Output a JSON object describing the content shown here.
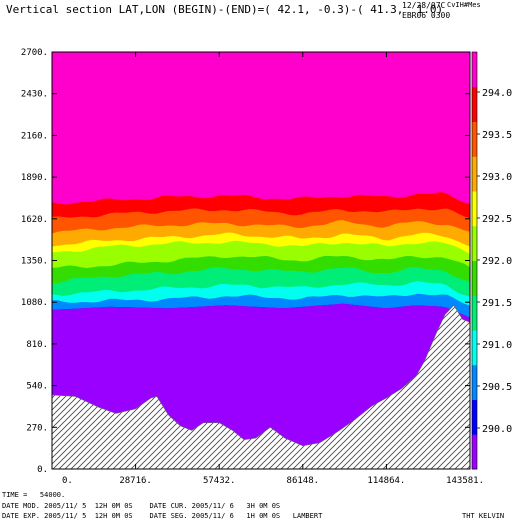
{
  "header": {
    "title": "Vertical section LAT,LON (BEGIN)-(END)=( 42.1, -0.3)-( 41.3,  1.0)",
    "date": "12/28/07C",
    "user": "CvIH#Mes",
    "run": "EBR06 0300"
  },
  "footer": {
    "time": "TIME =   54000.",
    "line1": "DATE MOD. 2005/11/ 5  12H 0M 0S    DATE CUR. 2005/11/ 6   3H 0M 0S",
    "line2": "DATE EXP. 2005/11/ 5  12H 0M 0S    DATE SEG. 2005/11/ 6   1H 0M 0S   LAMBERT",
    "field": "THT KELVIN"
  },
  "chart_data": {
    "type": "area",
    "title": "Vertical section LAT,LON (BEGIN)-(END)=( 42.1, -0.3)-( 41.3,  1.0)",
    "xlabel": "",
    "ylabel": "",
    "xlim": [
      0,
      143581
    ],
    "ylim": [
      0,
      2700
    ],
    "x_ticks": [
      0,
      28716,
      57432,
      86148,
      114864,
      143581
    ],
    "x_tick_labels": [
      "0.",
      "28716.",
      "57432.",
      "86148.",
      "114864.",
      "143581."
    ],
    "y_ticks": [
      0,
      270,
      540,
      810,
      1080,
      1350,
      1620,
      1890,
      2160,
      2430,
      2700
    ],
    "y_tick_labels": [
      "0.",
      "270.",
      "540.",
      "810.",
      "1080.",
      "1350.",
      "1620.",
      "1890.",
      "2160.",
      "2430.",
      "2700."
    ],
    "colorbar": {
      "label_values": [
        "290.0",
        "290.5",
        "291.0",
        "291.5",
        "292.0",
        "292.5",
        "293.0",
        "293.5",
        "294.0"
      ],
      "colors": [
        "#9a00ff",
        "#0000ff",
        "#0088ff",
        "#00ffee",
        "#00ee77",
        "#33dd00",
        "#99ff00",
        "#ffff00",
        "#ffaa00",
        "#ff5500",
        "#ff0000",
        "#ff00cc"
      ]
    },
    "terrain": {
      "x": [
        0,
        8000,
        16000,
        22000,
        28716,
        34000,
        36000,
        40000,
        44000,
        48000,
        52000,
        57432,
        62000,
        66000,
        70000,
        75000,
        80000,
        86148,
        92000,
        98000,
        104000,
        110000,
        114864,
        120000,
        125000,
        128000,
        132000,
        135000,
        138000,
        141000,
        143581
      ],
      "y": [
        480,
        470,
        400,
        360,
        390,
        460,
        470,
        350,
        280,
        250,
        300,
        300,
        250,
        190,
        200,
        270,
        200,
        150,
        170,
        240,
        320,
        410,
        460,
        520,
        600,
        700,
        880,
        1000,
        1060,
        970,
        950
      ]
    },
    "isolines": [
      {
        "name": "290.5",
        "x": [
          0,
          20000,
          40000,
          60000,
          80000,
          86148,
          100000,
          114864,
          125000,
          135000,
          143581
        ],
        "y": [
          1030,
          1050,
          1040,
          1060,
          1040,
          1050,
          1070,
          1040,
          1060,
          1050,
          980
        ]
      },
      {
        "name": "291.0",
        "x": [
          0,
          20000,
          40000,
          60000,
          80000,
          86148,
          100000,
          114864,
          125000,
          135000,
          143581
        ],
        "y": [
          1080,
          1090,
          1100,
          1120,
          1110,
          1100,
          1130,
          1110,
          1140,
          1120,
          1060
        ]
      },
      {
        "name": "291.2",
        "x": [
          0,
          20000,
          40000,
          60000,
          80000,
          86148,
          100000,
          114864,
          125000,
          135000,
          143581
        ],
        "y": [
          1130,
          1150,
          1170,
          1190,
          1180,
          1170,
          1200,
          1190,
          1210,
          1190,
          1120
        ]
      },
      {
        "name": "291.5",
        "x": [
          0,
          20000,
          40000,
          60000,
          80000,
          86148,
          100000,
          114864,
          125000,
          135000,
          143581
        ],
        "y": [
          1210,
          1250,
          1270,
          1300,
          1280,
          1280,
          1300,
          1270,
          1300,
          1290,
          1200
        ]
      },
      {
        "name": "291.8",
        "x": [
          0,
          20000,
          40000,
          60000,
          80000,
          86148,
          100000,
          114864,
          125000,
          135000,
          143581
        ],
        "y": [
          1300,
          1320,
          1350,
          1380,
          1360,
          1350,
          1380,
          1350,
          1380,
          1370,
          1300
        ]
      },
      {
        "name": "292.0",
        "x": [
          0,
          20000,
          40000,
          60000,
          80000,
          86148,
          100000,
          114864,
          125000,
          135000,
          143581
        ],
        "y": [
          1400,
          1440,
          1460,
          1470,
          1450,
          1440,
          1470,
          1440,
          1470,
          1460,
          1400
        ]
      },
      {
        "name": "292.3",
        "x": [
          0,
          20000,
          40000,
          60000,
          80000,
          86148,
          100000,
          114864,
          125000,
          135000,
          143581
        ],
        "y": [
          1450,
          1480,
          1500,
          1520,
          1500,
          1490,
          1520,
          1490,
          1520,
          1510,
          1450
        ]
      },
      {
        "name": "292.5",
        "x": [
          0,
          20000,
          40000,
          60000,
          80000,
          86148,
          100000,
          114864,
          125000,
          135000,
          143581
        ],
        "y": [
          1530,
          1560,
          1580,
          1590,
          1570,
          1570,
          1600,
          1570,
          1600,
          1590,
          1530
        ]
      },
      {
        "name": "293.0",
        "x": [
          0,
          20000,
          40000,
          60000,
          80000,
          86148,
          100000,
          114864,
          125000,
          135000,
          143581
        ],
        "y": [
          1620,
          1650,
          1670,
          1680,
          1660,
          1650,
          1680,
          1660,
          1690,
          1680,
          1620
        ]
      },
      {
        "name": "293.5",
        "x": [
          0,
          20000,
          40000,
          60000,
          80000,
          86148,
          100000,
          114864,
          125000,
          135000,
          143581
        ],
        "y": [
          1720,
          1740,
          1760,
          1770,
          1750,
          1750,
          1770,
          1760,
          1780,
          1780,
          1720
        ]
      },
      {
        "name": "294.0",
        "x": [
          0,
          20000,
          40000,
          60000,
          80000,
          86148,
          100000,
          114864,
          125000,
          135000,
          143581
        ],
        "y": [
          1790,
          1810,
          1830,
          1850,
          1830,
          1830,
          1850,
          1850,
          1860,
          1860,
          1820
        ]
      }
    ]
  }
}
